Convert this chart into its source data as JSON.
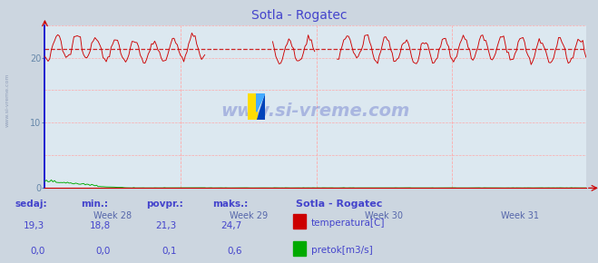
{
  "title": "Sotla - Rogatec",
  "bg_color": "#ccd6e0",
  "plot_bg_color": "#dce8f0",
  "title_color": "#4444cc",
  "tick_color": "#6688aa",
  "temp_color": "#cc0000",
  "flow_color": "#00aa00",
  "avg_line_color": "#cc0000",
  "watermark_color": "#3344bb",
  "xaxis_label_color": "#5566aa",
  "ylim": [
    0,
    25
  ],
  "yticks": [
    0,
    10,
    20
  ],
  "week_labels": [
    "Week 28",
    "Week 29",
    "Week 30",
    "Week 31"
  ],
  "avg_value": 21.3,
  "temp_min": 18.8,
  "temp_max": 24.7,
  "flow_max": 0.6,
  "n_points": 336,
  "sedaj_temp": "19,3",
  "min_temp": "18,8",
  "povpr_temp": "21,3",
  "maks_temp": "24,7",
  "sedaj_flow": "0,0",
  "min_flow": "0,0",
  "povpr_flow": "0,1",
  "maks_flow": "0,6",
  "legend_title": "Sotla - Rogatec",
  "legend_temp_label": "temperatura[C]",
  "legend_flow_label": "pretok[m3/s]",
  "stat_labels": [
    "sedaj:",
    "min.:",
    "povpr.:",
    "maks.:"
  ],
  "footer_bg": "#ccd6e0",
  "logo_yellow": "#ffdd00",
  "logo_blue_dark": "#0044bb",
  "logo_blue_light": "#44aaff"
}
